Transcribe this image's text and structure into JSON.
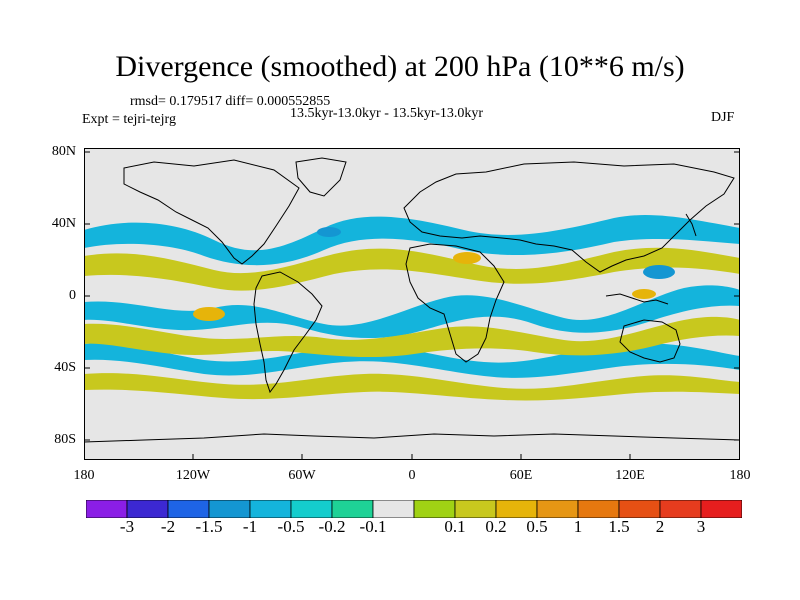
{
  "title": "Divergence (smoothed) at 200 hPa (10**6 m/s)",
  "stats": "rmsd= 0.179517 diff= 0.000552855",
  "experiment": "Expt = tejri-tejrg",
  "period": "13.5kyr-13.0kyr - 13.5kyr-13.0kyr",
  "season": "DJF",
  "map": {
    "lat_labels": [
      "80N",
      "40N",
      "0",
      "40S",
      "80S"
    ],
    "lon_labels": [
      "180",
      "120W",
      "60W",
      "0",
      "60E",
      "120E",
      "180"
    ]
  },
  "colorbar": {
    "colors": [
      "#8b1ee6",
      "#3c28d2",
      "#1e64e6",
      "#1496d2",
      "#14b4dc",
      "#14cdcd",
      "#1ed296",
      "#e6e6e6",
      "#a0d214",
      "#c8c81e",
      "#e6b40a",
      "#e69614",
      "#e6780f",
      "#e65014",
      "#e63c1e",
      "#e61e1e"
    ],
    "labels": [
      "-3",
      "-2",
      "-1.5",
      "-1",
      "-0.5",
      "-0.2",
      "-0.1",
      "0.1",
      "0.2",
      "0.5",
      "1",
      "1.5",
      "2",
      "3"
    ]
  },
  "palette": {
    "positive": "#c8c81e",
    "negative": "#14b4dc",
    "neutral": "#e6e6e6",
    "strong_pos": "#e6b40a",
    "strong_neg": "#1496d2"
  }
}
